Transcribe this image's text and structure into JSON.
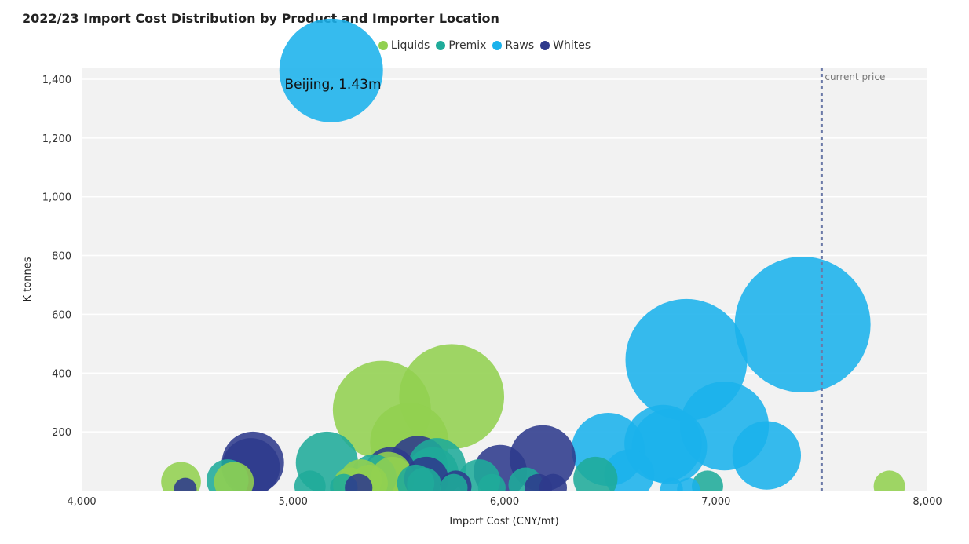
{
  "chart_data": {
    "type": "scatter",
    "variant": "bubble",
    "title": "2022/23 Import Cost Distribution by Product and Importer Location",
    "xlabel": "Import Cost (CNY/mt)",
    "ylabel": "K tonnes",
    "xlim": [
      4000,
      8000
    ],
    "ylim": [
      0,
      1440
    ],
    "x_ticks": [
      {
        "value": 4000,
        "label": "4,000"
      },
      {
        "value": 5000,
        "label": "5,000"
      },
      {
        "value": 6000,
        "label": "6,000"
      },
      {
        "value": 7000,
        "label": "7,000"
      },
      {
        "value": 8000,
        "label": "8,000"
      }
    ],
    "y_ticks": [
      {
        "value": 200,
        "label": "200"
      },
      {
        "value": 400,
        "label": "400"
      },
      {
        "value": 600,
        "label": "600"
      },
      {
        "value": 800,
        "label": "800"
      },
      {
        "value": 1000,
        "label": "1,000"
      },
      {
        "value": 1200,
        "label": "1,200"
      },
      {
        "value": 1400,
        "label": "1,400"
      }
    ],
    "grid": true,
    "legend_position": "top-center",
    "reference_line": {
      "x": 7500,
      "label": "current price",
      "color": "#6b7aa8"
    },
    "annotation": {
      "text": "Beijing, 1.43m",
      "x": 5180,
      "y": 1430
    },
    "series": [
      {
        "name": "Liquids",
        "color": "#92d050",
        "points": [
          {
            "x": 4470,
            "y": 30
          },
          {
            "x": 4720,
            "y": 30
          },
          {
            "x": 5270,
            "y": 20
          },
          {
            "x": 5320,
            "y": 35
          },
          {
            "x": 5360,
            "y": 25
          },
          {
            "x": 5420,
            "y": 275
          },
          {
            "x": 5450,
            "y": 50
          },
          {
            "x": 5470,
            "y": 40
          },
          {
            "x": 5550,
            "y": 165
          },
          {
            "x": 5750,
            "y": 320
          },
          {
            "x": 7820,
            "y": 15
          }
        ]
      },
      {
        "name": "Premix",
        "color": "#1fab9a",
        "points": [
          {
            "x": 4690,
            "y": 35
          },
          {
            "x": 5080,
            "y": 15
          },
          {
            "x": 5160,
            "y": 95
          },
          {
            "x": 5240,
            "y": 10
          },
          {
            "x": 5380,
            "y": 45
          },
          {
            "x": 5580,
            "y": 25
          },
          {
            "x": 5620,
            "y": 20
          },
          {
            "x": 5660,
            "y": 60
          },
          {
            "x": 5680,
            "y": 80
          },
          {
            "x": 5760,
            "y": 10
          },
          {
            "x": 5880,
            "y": 35
          },
          {
            "x": 5940,
            "y": 10
          },
          {
            "x": 6100,
            "y": 20
          },
          {
            "x": 6430,
            "y": 40
          },
          {
            "x": 6960,
            "y": 15
          }
        ]
      },
      {
        "name": "Raws",
        "color": "#1ab2ec",
        "points": [
          {
            "x": 5180,
            "y": 1430
          },
          {
            "x": 6490,
            "y": 140
          },
          {
            "x": 6590,
            "y": 55
          },
          {
            "x": 6750,
            "y": 160
          },
          {
            "x": 6780,
            "y": 150
          },
          {
            "x": 6790,
            "y": 5
          },
          {
            "x": 6860,
            "y": 445
          },
          {
            "x": 6870,
            "y": 5
          },
          {
            "x": 7040,
            "y": 220
          },
          {
            "x": 7240,
            "y": 120
          },
          {
            "x": 7410,
            "y": 565
          }
        ]
      },
      {
        "name": "Whites",
        "color": "#2e3a8c",
        "points": [
          {
            "x": 4490,
            "y": 5
          },
          {
            "x": 4800,
            "y": 80
          },
          {
            "x": 4810,
            "y": 95
          },
          {
            "x": 5310,
            "y": 10
          },
          {
            "x": 5460,
            "y": 60
          },
          {
            "x": 5590,
            "y": 85
          },
          {
            "x": 5630,
            "y": 40
          },
          {
            "x": 5770,
            "y": 15
          },
          {
            "x": 5980,
            "y": 65
          },
          {
            "x": 6160,
            "y": 10
          },
          {
            "x": 6180,
            "y": 110
          },
          {
            "x": 6230,
            "y": 10
          }
        ]
      }
    ]
  }
}
